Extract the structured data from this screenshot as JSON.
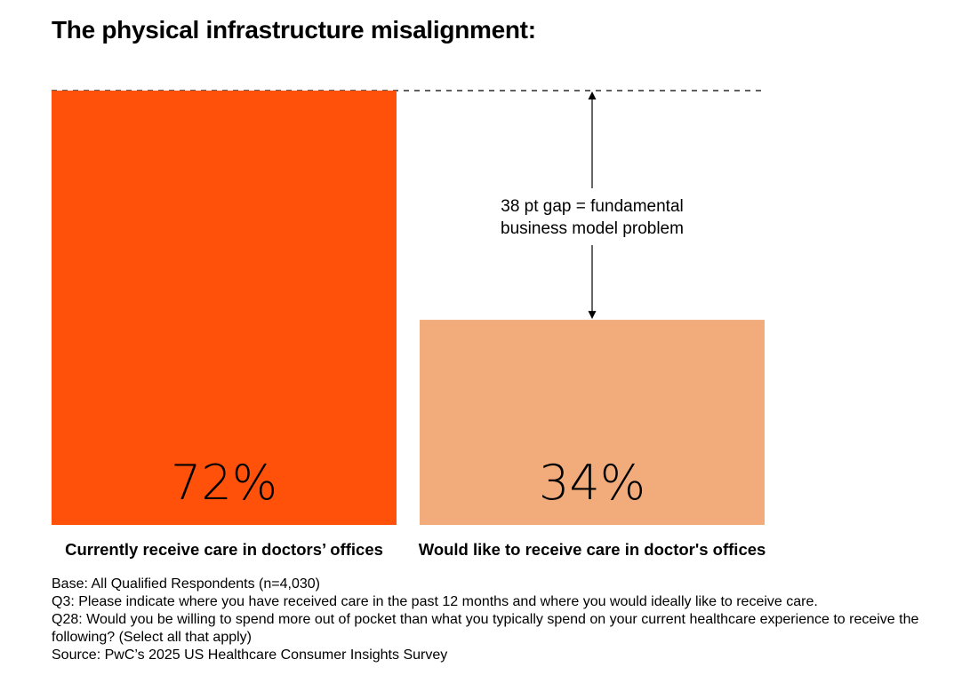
{
  "title": "The physical infrastructure misalignment:",
  "chart_data": {
    "type": "bar",
    "categories": [
      "Currently receive care in doctors’ offices",
      "Would like to receive care in doctor's offices"
    ],
    "values": [
      72,
      34
    ],
    "value_labels": [
      "72%",
      "34%"
    ],
    "colors": [
      "#FF5109",
      "#F2AC7C"
    ],
    "ylim": [
      0,
      72
    ],
    "grid": false,
    "reference_line": {
      "value": 72,
      "style": "dashed"
    },
    "annotation": {
      "lines": [
        "38 pt gap = fundamental",
        "business model problem"
      ],
      "from": 72,
      "to": 34
    }
  },
  "footnotes": [
    "Base: All Qualified Respondents (n=4,030)",
    "Q3: Please indicate where you have received care in the past 12 months and where you would ideally like to receive care.",
    "Q28: Would you be willing to spend more out of pocket than what you typically spend on your current healthcare experience to receive the following? (Select all that apply)",
    "Source: PwC’s 2025 US Healthcare Consumer Insights Survey"
  ]
}
